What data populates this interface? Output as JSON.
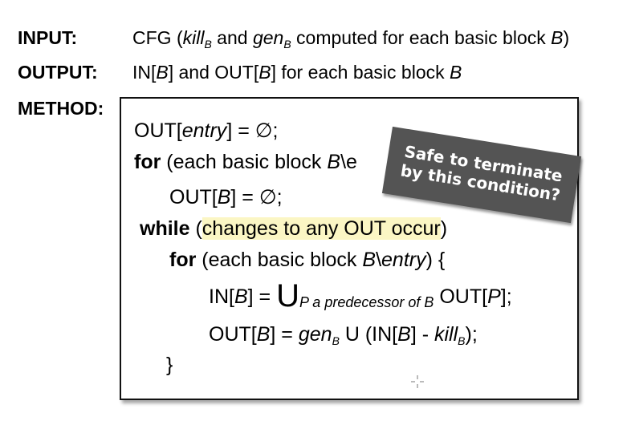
{
  "input": {
    "label": "INPUT:",
    "text": "CFG (kill_B and gen_B computed for each basic block B)",
    "parts": {
      "a": "CFG (",
      "kill": "kill",
      "sub1": "B",
      "and": " and ",
      "gen": "gen",
      "sub2": "B",
      "rest": " computed for each basic block ",
      "B": "B",
      "close": ")"
    }
  },
  "output": {
    "label": "OUTPUT:",
    "text": "IN[B] and OUT[B] for each basic block B",
    "parts": {
      "a": "IN[",
      "B1": "B",
      "b": "] and OUT[",
      "B2": "B",
      "c": "] for each basic block ",
      "B3": "B"
    }
  },
  "method": {
    "label": "METHOD:",
    "lines": {
      "l1": {
        "a": "OUT[",
        "entry": "entry",
        "b": "] = ∅;"
      },
      "l2": {
        "kw": "for",
        "a": " (each basic block ",
        "B": "B",
        "b": "\\e"
      },
      "l3": {
        "a": "OUT[",
        "B": "B",
        "b": "] = ∅;"
      },
      "l4": {
        "kw": "while",
        "a": " (",
        "hl": "changes to any OUT occur",
        "b": ")"
      },
      "l5": {
        "kw": "for",
        "a": " (each basic block ",
        "B": "B",
        "b": "\\",
        "entry": "entry",
        "c": ") {"
      },
      "l6": {
        "a": "IN[",
        "B": "B",
        "b": "] = ",
        "U": "U",
        "sub": "P a predecessor of B",
        "c": " OUT[",
        "P": "P",
        "d": "];"
      },
      "l7": {
        "a": "OUT[",
        "B": "B",
        "b": "] = ",
        "gen": "gen",
        "sub1": "B",
        "c": " U (IN[",
        "B2": "B",
        "d": "] - ",
        "kill": "kill",
        "sub2": "B",
        "e": ");"
      },
      "l8": {
        "a": "}"
      }
    }
  },
  "callout": {
    "line1": "Safe to terminate",
    "line2": "by this condition?"
  }
}
